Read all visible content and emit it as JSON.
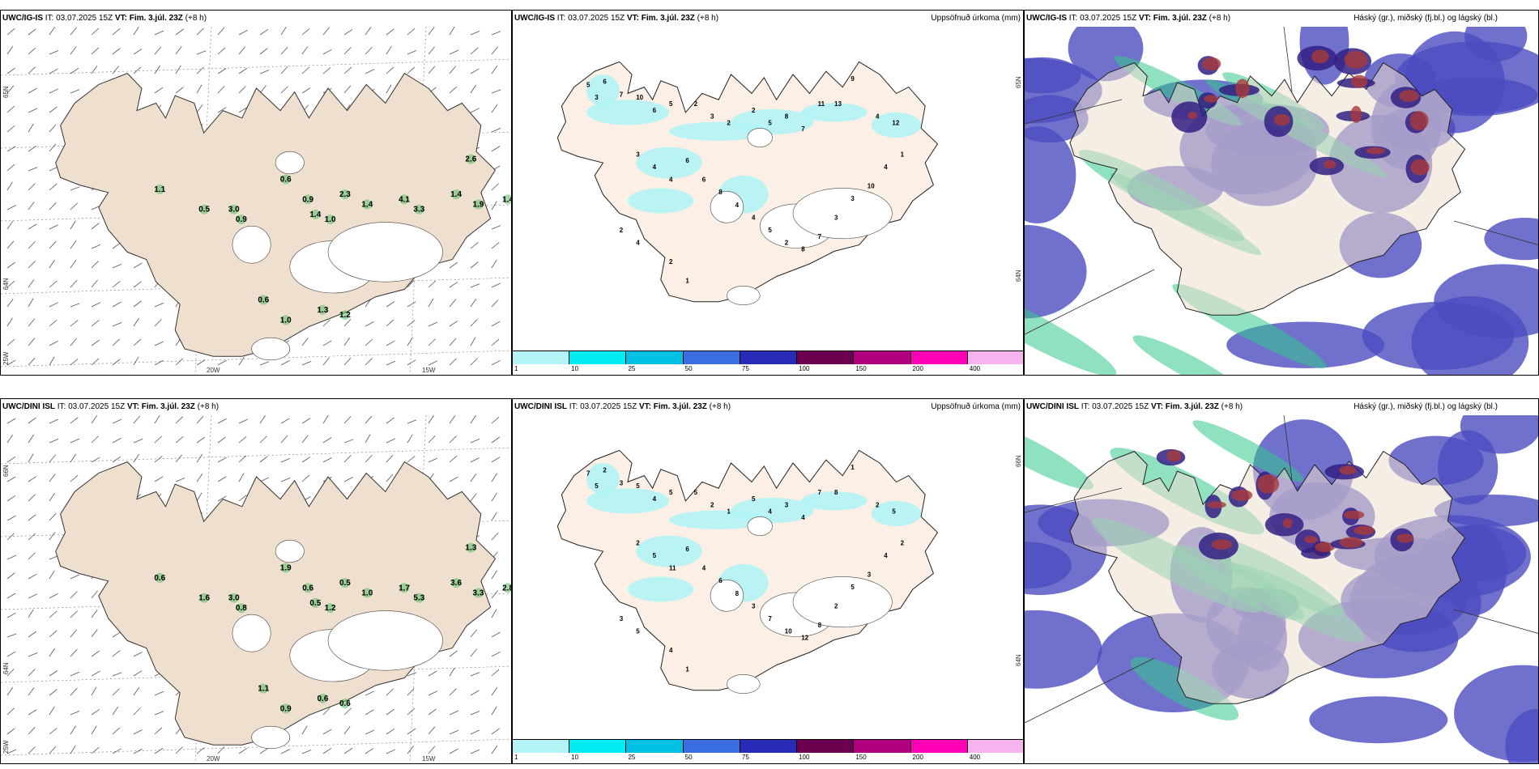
{
  "colors": {
    "land_top": "#eedfcf",
    "land_precip": "#fbefe6",
    "precip_cyan": "#aef3f5",
    "cloud_blue": "#4c4cc0",
    "cloud_dark": "#331f82",
    "cloud_red": "#a83a3a",
    "cloud_green": "#33c88c",
    "glacier": "#ffffff"
  },
  "rows": [
    {
      "model_label": "UWC/IG-IS",
      "run_text": "IT: 03.07.2025 15Z",
      "vt_label": "VT: Fim. 3.júl. 23Z",
      "lead_text": "(+8 h)",
      "precip_title": "Uppsöfnuð úrkoma (mm)",
      "cloud_title": "Háský (gr.), miðský (fj.bl.) og lágský (bl.)",
      "axis_labels": {
        "lat_top": "65N",
        "lat_mid": "64N",
        "lon_left": "25W",
        "lon_20": "20W",
        "lon_15": "15W",
        "lat_right_top": "65N",
        "lat_right_mid": "64N"
      },
      "convective_values": [
        "1.1",
        "0.5",
        "3.0",
        "0.9",
        "0.6",
        "0.9",
        "2.3",
        "1.4",
        "1.0",
        "1.4",
        "4.1",
        "3.3",
        "1.4",
        "2.6",
        "1.9",
        "1.4",
        "0.6",
        "1.0",
        "1.3",
        "1.2"
      ],
      "precip_values": [
        "5",
        "3",
        "6",
        "7",
        "10",
        "6",
        "5",
        "2",
        "3",
        "2",
        "2",
        "5",
        "8",
        "7",
        "11",
        "13",
        "9",
        "4",
        "12",
        "3",
        "4",
        "4",
        "6",
        "6",
        "8",
        "4",
        "4",
        "5",
        "2",
        "8",
        "7",
        "3",
        "3",
        "10",
        "4",
        "1",
        "2",
        "1",
        "2",
        "4"
      ]
    },
    {
      "model_label": "UWC/DINI ISL",
      "run_text": "IT: 03.07.2025 15Z",
      "vt_label": "VT: Fim. 3.júl. 23Z",
      "lead_text": "(+8 h)",
      "precip_title": "Uppsöfnuð úrkoma (mm)",
      "cloud_title": "Háský (gr.), miðský (fj.bl.) og lágský (bl.)",
      "axis_labels": {
        "lat_top": "66N",
        "lat_mid": "64N",
        "lon_left": "25W",
        "lon_20": "20W",
        "lon_15": "15W",
        "lat_right_top": "66N",
        "lat_right_mid": "64N"
      },
      "convective_values": [
        "0.6",
        "1.6",
        "3.0",
        "0.8",
        "1.9",
        "0.6",
        "0.5",
        "0.5",
        "1.2",
        "1.0",
        "1.7",
        "5.3",
        "3.6",
        "1.3",
        "3.3",
        "2.8",
        "1.1",
        "0.9",
        "0.6",
        "0.6"
      ],
      "precip_values": [
        "7",
        "5",
        "2",
        "3",
        "5",
        "4",
        "5",
        "5",
        "2",
        "1",
        "5",
        "4",
        "3",
        "4",
        "7",
        "8",
        "1",
        "2",
        "5",
        "2",
        "5",
        "11",
        "6",
        "4",
        "6",
        "8",
        "3",
        "7",
        "10",
        "12",
        "8",
        "2",
        "5",
        "3",
        "4",
        "2",
        "4",
        "1",
        "3",
        "5"
      ]
    }
  ],
  "colorbar": {
    "colors": [
      "#b3f5f7",
      "#00ecf2",
      "#00c0e4",
      "#3a6ee0",
      "#2a2ab8",
      "#6a004f",
      "#b0007f",
      "#ff00b4",
      "#f5b4f0"
    ],
    "ticks": [
      "1",
      "10",
      "25",
      "50",
      "75",
      "100",
      "150",
      "200",
      "400"
    ]
  }
}
